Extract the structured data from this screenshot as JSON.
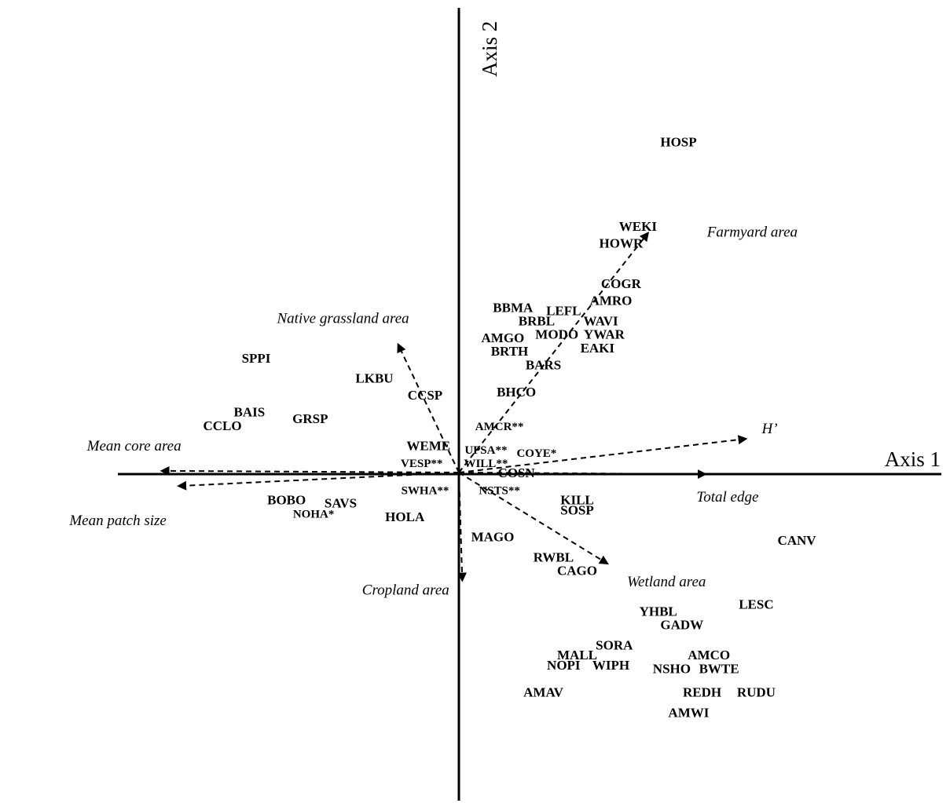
{
  "chart_data": {
    "type": "scatter",
    "axes": {
      "x": {
        "label": "Axis 1",
        "range": [
          -10.1,
          10.7
        ]
      },
      "y": {
        "label": "Axis 2",
        "range": [
          -7.6,
          10.3
        ]
      },
      "grid": false
    },
    "points": [
      {
        "label": "HOSP",
        "x": 6.5,
        "y": 9.8
      },
      {
        "label": "WEKI",
        "x": 5.3,
        "y": 7.3
      },
      {
        "label": "HOWR",
        "x": 4.8,
        "y": 6.8
      },
      {
        "label": "COGR",
        "x": 4.8,
        "y": 5.6
      },
      {
        "label": "AMRO",
        "x": 4.5,
        "y": 5.1
      },
      {
        "label": "BBMA",
        "x": 1.6,
        "y": 4.9
      },
      {
        "label": "LEFL",
        "x": 3.1,
        "y": 4.8
      },
      {
        "label": "WAVI",
        "x": 4.2,
        "y": 4.5
      },
      {
        "label": "BRBL",
        "x": 2.3,
        "y": 4.5
      },
      {
        "label": "MODO",
        "x": 2.9,
        "y": 4.1
      },
      {
        "label": "YWAR",
        "x": 4.3,
        "y": 4.1
      },
      {
        "label": "AMGO",
        "x": 1.3,
        "y": 4.0
      },
      {
        "label": "EAKI",
        "x": 4.1,
        "y": 3.7
      },
      {
        "label": "BRTH",
        "x": 1.5,
        "y": 3.6
      },
      {
        "label": "SPPI",
        "x": -6.0,
        "y": 3.4
      },
      {
        "label": "BARS",
        "x": 2.5,
        "y": 3.2
      },
      {
        "label": "LKBU",
        "x": -2.5,
        "y": 2.8
      },
      {
        "label": "CCSP",
        "x": -1.0,
        "y": 2.3
      },
      {
        "label": "BHCO",
        "x": 1.7,
        "y": 2.4
      },
      {
        "label": "BAIS",
        "x": -6.2,
        "y": 1.8
      },
      {
        "label": "GRSP",
        "x": -4.4,
        "y": 1.6
      },
      {
        "label": "CCLO",
        "x": -7.0,
        "y": 1.4
      },
      {
        "label": "AMCR**",
        "x": 1.2,
        "y": 1.4
      },
      {
        "label": "WEME",
        "x": -0.9,
        "y": 0.8
      },
      {
        "label": "UPSA**",
        "x": 0.8,
        "y": 0.7
      },
      {
        "label": "COYE*",
        "x": 2.3,
        "y": 0.6
      },
      {
        "label": "VESP**",
        "x": -1.1,
        "y": 0.3
      },
      {
        "label": "WILL**",
        "x": 0.8,
        "y": 0.3
      },
      {
        "label": "COSN",
        "x": 1.7,
        "y": 0.0
      },
      {
        "label": "SWHA**",
        "x": -1.0,
        "y": -0.5
      },
      {
        "label": "NSTS**",
        "x": 1.2,
        "y": -0.5
      },
      {
        "label": "BOBO",
        "x": -5.1,
        "y": -0.8
      },
      {
        "label": "KILL",
        "x": 3.5,
        "y": -0.8
      },
      {
        "label": "SAVS",
        "x": -3.5,
        "y": -0.9
      },
      {
        "label": "SOSP",
        "x": 3.5,
        "y": -1.1
      },
      {
        "label": "NOHA*",
        "x": -4.3,
        "y": -1.2
      },
      {
        "label": "HOLA",
        "x": -1.6,
        "y": -1.3
      },
      {
        "label": "MAGO",
        "x": 1.0,
        "y": -1.9
      },
      {
        "label": "CANV",
        "x": 10.0,
        "y": -2.0
      },
      {
        "label": "RWBL",
        "x": 2.8,
        "y": -2.5
      },
      {
        "label": "CAGO",
        "x": 3.5,
        "y": -2.9
      },
      {
        "label": "LESC",
        "x": 8.8,
        "y": -3.9
      },
      {
        "label": "YHBL",
        "x": 5.9,
        "y": -4.1
      },
      {
        "label": "GADW",
        "x": 6.6,
        "y": -4.5
      },
      {
        "label": "SORA",
        "x": 4.6,
        "y": -5.1
      },
      {
        "label": "MALL",
        "x": 3.5,
        "y": -5.4
      },
      {
        "label": "AMCO",
        "x": 7.4,
        "y": -5.4
      },
      {
        "label": "NOPI",
        "x": 3.1,
        "y": -5.7
      },
      {
        "label": "WIPH",
        "x": 4.5,
        "y": -5.7
      },
      {
        "label": "NSHO",
        "x": 6.3,
        "y": -5.8
      },
      {
        "label": "BWTE",
        "x": 7.7,
        "y": -5.8
      },
      {
        "label": "AMAV",
        "x": 2.5,
        "y": -6.5
      },
      {
        "label": "REDH",
        "x": 7.2,
        "y": -6.5
      },
      {
        "label": "RUDU",
        "x": 8.8,
        "y": -6.5
      },
      {
        "label": "AMWI",
        "x": 6.8,
        "y": -7.1
      }
    ],
    "vectors": [
      {
        "label": "Farmyard area",
        "x": 5.6,
        "y": 7.1,
        "style": "dashed"
      },
      {
        "label": "Native grassland area",
        "x": -1.8,
        "y": 3.8,
        "style": "dashed"
      },
      {
        "label": "H’",
        "x": 8.5,
        "y": 1.0,
        "style": "dashed"
      },
      {
        "label": "Total edge",
        "x": 7.3,
        "y": -0.05,
        "style": "dashed"
      },
      {
        "label": "Mean core area",
        "x": -8.8,
        "y": 0.05,
        "style": "dashed"
      },
      {
        "label": "Mean patch size",
        "x": -8.3,
        "y": -0.4,
        "style": "dashed"
      },
      {
        "label": "Cropland area",
        "x": 0.1,
        "y": -3.2,
        "style": "dashed"
      },
      {
        "label": "Wetland area",
        "x": 4.4,
        "y": -2.7,
        "style": "dashed"
      }
    ],
    "marker_style": "text labels"
  }
}
